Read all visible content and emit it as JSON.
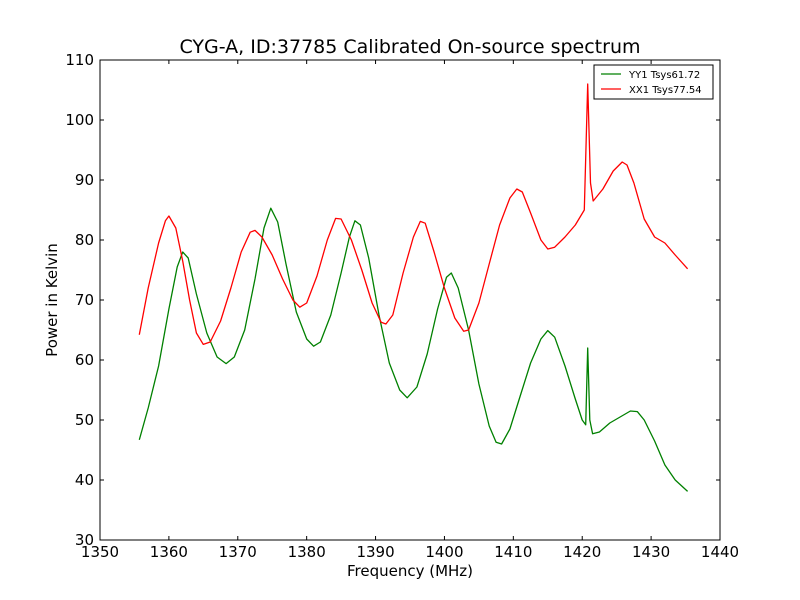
{
  "chart_data": {
    "type": "line",
    "title": "CYG-A, ID:37785 Calibrated On-source spectrum",
    "xlabel": "Frequency (MHz)",
    "ylabel": "Power in Kelvin",
    "xlim": [
      1350,
      1440
    ],
    "ylim": [
      30,
      110
    ],
    "xticks": [
      1350,
      1360,
      1370,
      1380,
      1390,
      1400,
      1410,
      1420,
      1430,
      1440
    ],
    "yticks": [
      30,
      40,
      50,
      60,
      70,
      80,
      90,
      100,
      110
    ],
    "grid": false,
    "legend_position": "top-right",
    "series": [
      {
        "name": "YY1 Tsys61.72",
        "color": "#008000",
        "points": [
          [
            1355.7,
            46.7
          ],
          [
            1357.0,
            52.0
          ],
          [
            1358.5,
            59.0
          ],
          [
            1360.0,
            68.5
          ],
          [
            1361.2,
            75.5
          ],
          [
            1362.0,
            78.0
          ],
          [
            1362.8,
            77.0
          ],
          [
            1364.0,
            71.0
          ],
          [
            1365.5,
            64.5
          ],
          [
            1367.0,
            60.5
          ],
          [
            1368.3,
            59.4
          ],
          [
            1369.5,
            60.5
          ],
          [
            1371.0,
            65.0
          ],
          [
            1372.5,
            73.5
          ],
          [
            1373.8,
            82.0
          ],
          [
            1374.8,
            85.3
          ],
          [
            1375.8,
            83.0
          ],
          [
            1377.0,
            76.0
          ],
          [
            1378.5,
            68.0
          ],
          [
            1380.0,
            63.5
          ],
          [
            1381.0,
            62.3
          ],
          [
            1382.0,
            63.0
          ],
          [
            1383.5,
            67.5
          ],
          [
            1385.0,
            74.5
          ],
          [
            1386.2,
            80.5
          ],
          [
            1387.0,
            83.2
          ],
          [
            1387.8,
            82.5
          ],
          [
            1389.0,
            77.0
          ],
          [
            1390.5,
            67.5
          ],
          [
            1392.0,
            59.5
          ],
          [
            1393.5,
            55.0
          ],
          [
            1394.6,
            53.7
          ],
          [
            1396.0,
            55.5
          ],
          [
            1397.5,
            61.0
          ],
          [
            1399.0,
            68.5
          ],
          [
            1400.3,
            73.8
          ],
          [
            1401.0,
            74.5
          ],
          [
            1402.0,
            72.0
          ],
          [
            1403.5,
            65.0
          ],
          [
            1405.0,
            56.0
          ],
          [
            1406.5,
            49.0
          ],
          [
            1407.5,
            46.3
          ],
          [
            1408.3,
            46.0
          ],
          [
            1409.5,
            48.5
          ],
          [
            1411.0,
            54.0
          ],
          [
            1412.5,
            59.5
          ],
          [
            1414.0,
            63.5
          ],
          [
            1415.0,
            64.9
          ],
          [
            1416.0,
            63.8
          ],
          [
            1417.5,
            59.0
          ],
          [
            1419.0,
            53.5
          ],
          [
            1420.0,
            50.0
          ],
          [
            1420.5,
            49.2
          ],
          [
            1420.8,
            62.0
          ],
          [
            1421.1,
            50.0
          ],
          [
            1421.5,
            47.7
          ],
          [
            1422.5,
            48.0
          ],
          [
            1424.0,
            49.5
          ],
          [
            1425.5,
            50.5
          ],
          [
            1427.0,
            51.5
          ],
          [
            1428.0,
            51.4
          ],
          [
            1429.0,
            50.0
          ],
          [
            1430.5,
            46.5
          ],
          [
            1432.0,
            42.5
          ],
          [
            1433.5,
            40.0
          ],
          [
            1435.3,
            38.1
          ]
        ]
      },
      {
        "name": "XX1 Tsys77.54",
        "color": "#ff0000",
        "points": [
          [
            1355.7,
            64.2
          ],
          [
            1357.0,
            72.0
          ],
          [
            1358.5,
            79.5
          ],
          [
            1359.5,
            83.2
          ],
          [
            1360.0,
            84.0
          ],
          [
            1361.0,
            82.0
          ],
          [
            1362.0,
            76.5
          ],
          [
            1363.0,
            70.0
          ],
          [
            1364.0,
            64.5
          ],
          [
            1365.0,
            62.6
          ],
          [
            1366.0,
            63.0
          ],
          [
            1367.5,
            66.5
          ],
          [
            1369.0,
            72.0
          ],
          [
            1370.5,
            78.0
          ],
          [
            1371.8,
            81.3
          ],
          [
            1372.5,
            81.6
          ],
          [
            1373.5,
            80.5
          ],
          [
            1375.0,
            77.5
          ],
          [
            1376.5,
            73.5
          ],
          [
            1378.0,
            70.0
          ],
          [
            1379.0,
            68.8
          ],
          [
            1380.0,
            69.5
          ],
          [
            1381.5,
            74.0
          ],
          [
            1383.0,
            80.0
          ],
          [
            1384.2,
            83.6
          ],
          [
            1385.0,
            83.5
          ],
          [
            1386.5,
            80.0
          ],
          [
            1388.0,
            75.0
          ],
          [
            1389.5,
            69.5
          ],
          [
            1390.8,
            66.3
          ],
          [
            1391.5,
            66.0
          ],
          [
            1392.5,
            67.5
          ],
          [
            1394.0,
            74.5
          ],
          [
            1395.5,
            80.5
          ],
          [
            1396.5,
            83.1
          ],
          [
            1397.2,
            82.8
          ],
          [
            1398.5,
            78.0
          ],
          [
            1400.0,
            72.0
          ],
          [
            1401.5,
            67.0
          ],
          [
            1402.8,
            64.8
          ],
          [
            1403.5,
            65.0
          ],
          [
            1405.0,
            69.5
          ],
          [
            1406.5,
            76.0
          ],
          [
            1408.0,
            82.5
          ],
          [
            1409.5,
            87.0
          ],
          [
            1410.5,
            88.5
          ],
          [
            1411.3,
            88.0
          ],
          [
            1412.5,
            84.5
          ],
          [
            1414.0,
            80.0
          ],
          [
            1415.0,
            78.5
          ],
          [
            1416.0,
            78.8
          ],
          [
            1417.5,
            80.5
          ],
          [
            1419.0,
            82.5
          ],
          [
            1420.3,
            85.0
          ],
          [
            1420.8,
            106.0
          ],
          [
            1421.2,
            89.5
          ],
          [
            1421.6,
            86.5
          ],
          [
            1423.0,
            88.5
          ],
          [
            1424.5,
            91.5
          ],
          [
            1425.8,
            93.0
          ],
          [
            1426.5,
            92.5
          ],
          [
            1427.5,
            89.5
          ],
          [
            1429.0,
            83.5
          ],
          [
            1430.5,
            80.5
          ],
          [
            1432.0,
            79.5
          ],
          [
            1433.5,
            77.5
          ],
          [
            1435.3,
            75.2
          ]
        ]
      }
    ]
  }
}
